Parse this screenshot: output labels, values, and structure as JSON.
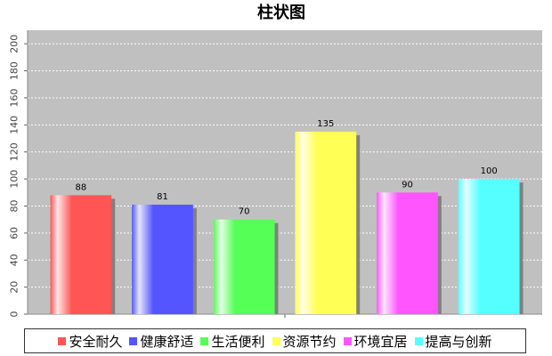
{
  "chart_data": {
    "type": "bar",
    "title": "柱状图",
    "categories": [
      "安全耐久",
      "健康舒适",
      "生活便利",
      "资源节约",
      "环境宜居",
      "提高与创新"
    ],
    "values": [
      88,
      81,
      70,
      135,
      90,
      100
    ],
    "colors": [
      "#ff5555",
      "#5555ff",
      "#55ff55",
      "#ffff55",
      "#ff55ff",
      "#55ffff"
    ],
    "ylim": [
      0,
      210
    ],
    "yticks": [
      0,
      20,
      40,
      60,
      80,
      100,
      120,
      140,
      160,
      180,
      200
    ],
    "grid": true,
    "legend_position": "bottom",
    "plot_background": "#c0c0c0"
  }
}
